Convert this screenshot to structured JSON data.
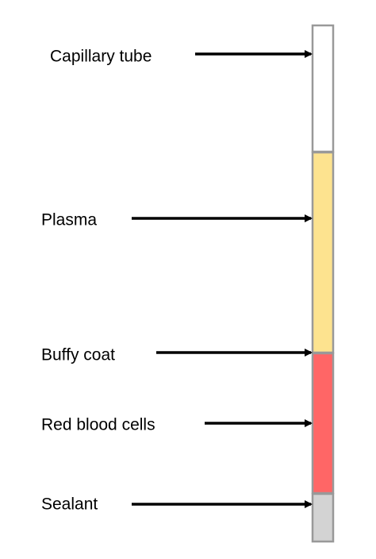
{
  "labels": [
    "Capillary tube",
    "Plasma",
    "Buffy coat",
    "Red blood cells",
    "Sealant"
  ]
}
